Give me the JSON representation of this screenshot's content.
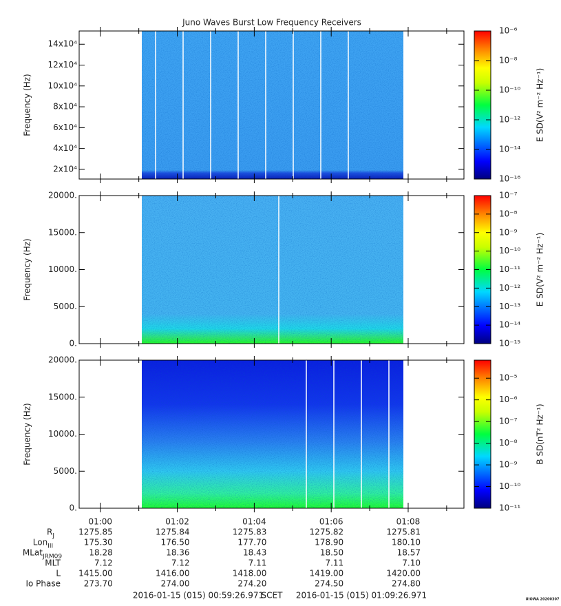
{
  "title": "Juno Waves Burst Low Frequency Receivers",
  "x_axis": {
    "xlim": [
      59.4495,
      69.4495
    ],
    "xticks": [
      {
        "value": 60,
        "label": "01:00"
      },
      {
        "value": 62,
        "label": "01:02"
      },
      {
        "value": 64,
        "label": "01:04"
      },
      {
        "value": 66,
        "label": "01:06"
      },
      {
        "value": 68,
        "label": "01:08"
      }
    ],
    "xminorticks": [
      61,
      63,
      65,
      67,
      69
    ]
  },
  "chart_data": [
    {
      "type": "spectrogram",
      "ylabel": "Frequency (Hz)",
      "ylim": [
        10700,
        152700
      ],
      "yticks": [
        {
          "value": 20000,
          "label": "2x10⁴"
        },
        {
          "value": 40000,
          "label": "4x10⁴"
        },
        {
          "value": 60000,
          "label": "6x10⁴"
        },
        {
          "value": 80000,
          "label": "8x10⁴"
        },
        {
          "value": 100000,
          "label": "10x10⁴"
        },
        {
          "value": 120000,
          "label": "12x10⁴"
        },
        {
          "value": 140000,
          "label": "14x10⁴"
        }
      ],
      "colorbar": {
        "label": "E SD(V² m⁻² Hz⁻¹)",
        "log": true,
        "clim": [
          1e-16,
          1e-06
        ],
        "ticks": [
          {
            "value": 1e-06,
            "label": "10⁻⁶"
          },
          {
            "value": 1e-08,
            "label": "10⁻⁸"
          },
          {
            "value": 1e-10,
            "label": "10⁻¹⁰"
          },
          {
            "value": 1e-12,
            "label": "10⁻¹²"
          },
          {
            "value": 1e-14,
            "label": "10⁻¹⁴"
          },
          {
            "value": 1e-16,
            "label": "10⁻¹⁶"
          }
        ]
      }
    },
    {
      "type": "spectrogram",
      "ylabel": "Frequency (Hz)",
      "ylim": [
        0,
        20000
      ],
      "yticks": [
        {
          "value": 0,
          "label": "0."
        },
        {
          "value": 5000,
          "label": "5000."
        },
        {
          "value": 10000,
          "label": "10000."
        },
        {
          "value": 15000,
          "label": "15000."
        },
        {
          "value": 20000,
          "label": "20000."
        }
      ],
      "colorbar": {
        "label": "E SD(V² m⁻² Hz⁻¹)",
        "log": true,
        "clim": [
          1e-15,
          1e-07
        ],
        "ticks": [
          {
            "value": 1e-07,
            "label": "10⁻⁷"
          },
          {
            "value": 1e-08,
            "label": "10⁻⁸"
          },
          {
            "value": 1e-09,
            "label": "10⁻⁹"
          },
          {
            "value": 1e-10,
            "label": "10⁻¹⁰"
          },
          {
            "value": 1e-11,
            "label": "10⁻¹¹"
          },
          {
            "value": 1e-12,
            "label": "10⁻¹²"
          },
          {
            "value": 1e-13,
            "label": "10⁻¹³"
          },
          {
            "value": 1e-14,
            "label": "10⁻¹⁴"
          },
          {
            "value": 1e-15,
            "label": "10⁻¹⁵"
          }
        ]
      }
    },
    {
      "type": "spectrogram",
      "ylabel": "Frequency (Hz)",
      "ylim": [
        0,
        20000
      ],
      "yticks": [
        {
          "value": 0,
          "label": "0."
        },
        {
          "value": 5000,
          "label": "5000."
        },
        {
          "value": 10000,
          "label": "10000."
        },
        {
          "value": 15000,
          "label": "15000."
        },
        {
          "value": 20000,
          "label": "20000."
        }
      ],
      "colorbar": {
        "label": "B SD(nT² Hz⁻¹)",
        "log": true,
        "clim": [
          1e-11,
          6.8e-05
        ],
        "ticks": [
          {
            "value": 1e-05,
            "label": "10⁻⁵"
          },
          {
            "value": 1e-06,
            "label": "10⁻⁶"
          },
          {
            "value": 1e-07,
            "label": "10⁻⁷"
          },
          {
            "value": 1e-08,
            "label": "10⁻⁸"
          },
          {
            "value": 1e-09,
            "label": "10⁻⁹"
          },
          {
            "value": 1e-10,
            "label": "10⁻¹⁰"
          },
          {
            "value": 1e-11,
            "label": "10⁻¹¹"
          }
        ]
      }
    }
  ],
  "ephemeris": {
    "rows": [
      {
        "label": "R",
        "sub": "J",
        "values": [
          "1275.85",
          "1275.84",
          "1275.83",
          "1275.82",
          "1275.81"
        ]
      },
      {
        "label": "Lon",
        "sub": "III",
        "values": [
          "175.30",
          "176.50",
          "177.70",
          "178.90",
          "180.10"
        ]
      },
      {
        "label": "MLat",
        "sub": "JRM09",
        "values": [
          "18.28",
          "18.36",
          "18.43",
          "18.50",
          "18.57"
        ]
      },
      {
        "label": "MLT",
        "values": [
          "7.12",
          "7.12",
          "7.11",
          "7.11",
          "7.10"
        ]
      },
      {
        "label": "L",
        "values": [
          "1415.00",
          "1416.00",
          "1418.00",
          "1419.00",
          "1420.00"
        ]
      },
      {
        "label": "Io Phase",
        "values": [
          "273.70",
          "274.00",
          "274.20",
          "274.50",
          "274.80"
        ]
      }
    ]
  },
  "footer": {
    "start": "2016-01-15 (015) 00:59:26.971",
    "label": "SCET",
    "end": "2016-01-15 (015) 01:09:26.971",
    "credit": "UIOWA 20200307"
  }
}
